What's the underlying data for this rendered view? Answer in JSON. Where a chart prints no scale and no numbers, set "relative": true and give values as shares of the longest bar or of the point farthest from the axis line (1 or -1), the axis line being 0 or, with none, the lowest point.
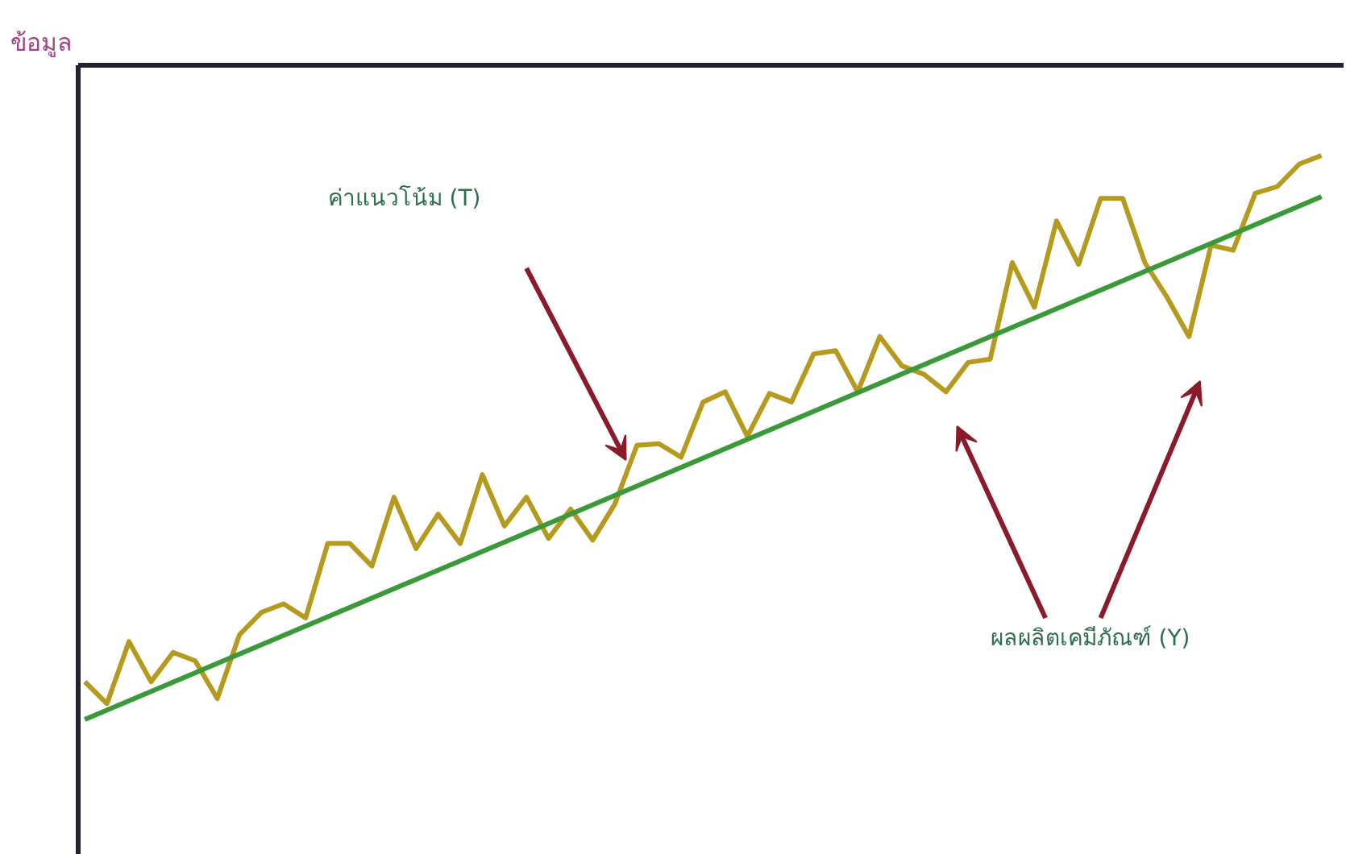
{
  "chart_data": {
    "type": "line",
    "relative": true,
    "ylabel": "ข้อมูล",
    "categories": [
      null,
      null,
      null,
      null,
      null,
      null,
      null,
      null,
      null,
      null,
      null,
      null,
      null,
      null,
      null,
      null,
      null,
      null,
      null,
      null,
      null,
      null,
      null,
      null,
      null,
      null,
      null,
      null,
      null,
      null,
      null,
      null,
      null,
      null,
      null,
      null,
      null,
      null,
      null,
      null,
      null,
      null,
      null,
      null,
      null,
      null,
      null,
      null,
      null,
      null,
      null,
      null,
      null,
      null,
      null,
      null,
      null
    ],
    "series": [
      {
        "color": "#b59a1e",
        "values": [
          0.067,
          0.028,
          0.138,
          0.067,
          0.119,
          0.104,
          0.037,
          0.15,
          0.19,
          0.205,
          0.18,
          0.312,
          0.312,
          0.272,
          0.394,
          0.303,
          0.364,
          0.312,
          0.434,
          0.343,
          0.394,
          0.321,
          0.373,
          0.318,
          0.382,
          0.486,
          0.489,
          0.465,
          0.563,
          0.581,
          0.502,
          0.578,
          0.563,
          0.648,
          0.654,
          0.581,
          0.679,
          0.627,
          0.612,
          0.581,
          0.633,
          0.639,
          0.81,
          0.731,
          0.884,
          0.807,
          0.924,
          0.924,
          0.81,
          0.749,
          0.679,
          0.841,
          0.832,
          0.933,
          0.945,
          0.985,
          1.0
        ]
      },
      {
        "color": "#3a9a3a",
        "values": [
          0.0,
          null,
          null,
          null,
          null,
          null,
          null,
          null,
          null,
          null,
          null,
          null,
          null,
          null,
          null,
          null,
          null,
          null,
          null,
          null,
          null,
          null,
          null,
          null,
          null,
          null,
          null,
          null,
          null,
          null,
          null,
          null,
          null,
          null,
          null,
          null,
          null,
          null,
          null,
          null,
          null,
          null,
          null,
          null,
          null,
          null,
          null,
          null,
          null,
          null,
          null,
          null,
          null,
          null,
          null,
          null,
          0.927
        ]
      }
    ],
    "annotations": [
      "ค่าแนวโน้ม (T)",
      "ผลผลิตเคมีภัณฑ์ (Y)"
    ],
    "grid": false,
    "marker": "none",
    "line_style": "solid"
  }
}
